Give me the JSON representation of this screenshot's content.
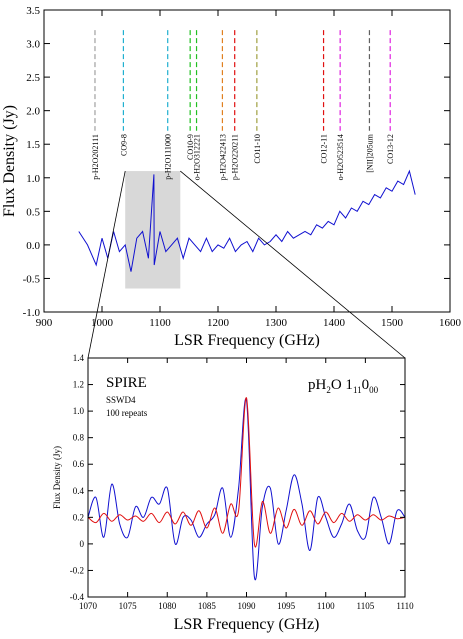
{
  "colors": {
    "spectrum": "#1010d0",
    "model": "#e01010",
    "zoom_box": "#d8d8d8"
  },
  "chart_data": [
    {
      "type": "line",
      "xlabel": "LSR Frequency (GHz)",
      "ylabel": "Flux Density (Jy)",
      "xlim": [
        900,
        1600
      ],
      "ylim": [
        -1.0,
        3.5
      ],
      "xticks": [
        "900",
        "1000",
        "1100",
        "1200",
        "1300",
        "1400",
        "1500",
        "1600"
      ],
      "yticks": [
        "-1.0",
        "-0.5",
        "0.0",
        "0.5",
        "1.0",
        "1.5",
        "2.0",
        "2.5",
        "3.0",
        "3.5"
      ],
      "zoom_region": {
        "x": [
          1040,
          1135
        ],
        "y": [
          -0.65,
          1.1
        ]
      },
      "lines": [
        {
          "label": "p-H2O202111",
          "freq": 987.9,
          "color": "#a0a0a0"
        },
        {
          "label": "CO9-8",
          "freq": 1036.9,
          "color": "#20b0d0"
        },
        {
          "label": "p-H2O111000",
          "freq": 1113.3,
          "color": "#20b0d0"
        },
        {
          "label": "CO10-9",
          "freq": 1152.0,
          "color": "#20c020"
        },
        {
          "label": "o-H2O312221",
          "freq": 1163.0,
          "color": "#20c020"
        },
        {
          "label": "p-H2O422413",
          "freq": 1207.6,
          "color": "#e08020"
        },
        {
          "label": "p-H2O220211",
          "freq": 1228.8,
          "color": "#e01010"
        },
        {
          "label": "CO11-10",
          "freq": 1267.0,
          "color": "#a0a040"
        },
        {
          "label": "CO12-11",
          "freq": 1382.0,
          "color": "#e01010"
        },
        {
          "label": "o-H2O523514",
          "freq": 1410.6,
          "color": "#e020e0"
        },
        {
          "label": "[NII]205um",
          "freq": 1461.1,
          "color": "#606060"
        },
        {
          "label": "CO13-12",
          "freq": 1496.9,
          "color": "#e020e0"
        }
      ],
      "series": [
        {
          "x": [
            960,
            975,
            990,
            1000,
            1010,
            1020,
            1030,
            1040,
            1050,
            1060,
            1070,
            1080,
            1089.5,
            1090,
            1100,
            1110,
            1120,
            1130,
            1140,
            1150,
            1160,
            1170,
            1180,
            1190,
            1200,
            1210,
            1220,
            1230,
            1240,
            1250,
            1260,
            1270,
            1280,
            1290,
            1300,
            1310,
            1320,
            1330,
            1340,
            1350,
            1360,
            1370,
            1380,
            1390,
            1400,
            1410,
            1420,
            1430,
            1440,
            1450,
            1460,
            1470,
            1480,
            1490,
            1500,
            1510,
            1520,
            1530,
            1540
          ],
          "y": [
            0.2,
            0.0,
            -0.3,
            0.1,
            -0.2,
            0.2,
            -0.1,
            0.0,
            -0.4,
            0.1,
            0.2,
            -0.2,
            1.05,
            -0.3,
            0.2,
            -0.1,
            0.0,
            0.1,
            -0.2,
            0.1,
            0.0,
            -0.1,
            0.1,
            -0.1,
            0.0,
            -0.05,
            0.1,
            -0.1,
            0.0,
            0.05,
            -0.1,
            0.1,
            0.0,
            0.05,
            0.15,
            0.05,
            0.2,
            0.1,
            0.15,
            0.2,
            0.15,
            0.3,
            0.25,
            0.35,
            0.3,
            0.5,
            0.4,
            0.55,
            0.5,
            0.65,
            0.6,
            0.75,
            0.7,
            0.85,
            0.8,
            0.95,
            0.9,
            1.1,
            0.75
          ]
        }
      ]
    },
    {
      "type": "line",
      "title": "SPIRE",
      "annotations": [
        "SSWD4",
        "100 repeats"
      ],
      "line_label_base": "pH",
      "line_label_sub1": "2",
      "line_label_mid": "O 1",
      "line_label_sub2": "11",
      "line_label_end": "0",
      "line_label_sub3": "00",
      "xlabel": "LSR Frequency (GHz)",
      "ylabel": "Flux Density (Jy)",
      "xlim": [
        1070,
        1110
      ],
      "ylim": [
        -0.4,
        1.4
      ],
      "xticks": [
        "1070",
        "1075",
        "1080",
        "1085",
        "1090",
        "1095",
        "1100",
        "1105",
        "1110"
      ],
      "yticks": [
        "-0.4",
        "-0.2",
        "0",
        "0.2",
        "0.4",
        "0.6",
        "0.8",
        "1.0",
        "1.2",
        "1.4"
      ],
      "series": [
        {
          "color": "#1010d0",
          "x": [
            1070,
            1071,
            1072,
            1073,
            1074,
            1075,
            1076,
            1077,
            1078,
            1079,
            1080,
            1081,
            1082,
            1083,
            1084,
            1085,
            1086,
            1087,
            1088,
            1089,
            1090,
            1091,
            1092,
            1093,
            1094,
            1095,
            1096,
            1097,
            1098,
            1099,
            1100,
            1101,
            1102,
            1103,
            1104,
            1105,
            1106,
            1107,
            1108,
            1109,
            1110
          ],
          "y": [
            0.2,
            0.35,
            0.05,
            0.45,
            0.15,
            0.05,
            0.28,
            0.2,
            0.35,
            0.3,
            0.42,
            0.0,
            0.2,
            0.18,
            0.05,
            0.15,
            0.22,
            0.42,
            0.05,
            0.42,
            1.08,
            -0.25,
            0.28,
            0.42,
            0.0,
            0.25,
            0.52,
            0.3,
            -0.05,
            0.35,
            0.2,
            0.05,
            0.15,
            0.3,
            0.1,
            0.05,
            0.35,
            0.2,
            0.0,
            0.25,
            0.2
          ]
        },
        {
          "color": "#e01010",
          "x": [
            1070,
            1071,
            1072,
            1073,
            1074,
            1075,
            1076,
            1077,
            1078,
            1079,
            1080,
            1081,
            1082,
            1083,
            1084,
            1085,
            1086,
            1087,
            1088,
            1089,
            1090,
            1091,
            1092,
            1093,
            1094,
            1095,
            1096,
            1097,
            1098,
            1099,
            1100,
            1101,
            1102,
            1103,
            1104,
            1105,
            1106,
            1107,
            1108,
            1109,
            1110
          ],
          "y": [
            0.2,
            0.16,
            0.23,
            0.17,
            0.22,
            0.18,
            0.21,
            0.17,
            0.23,
            0.16,
            0.24,
            0.15,
            0.24,
            0.14,
            0.25,
            0.12,
            0.27,
            0.08,
            0.3,
            0.25,
            1.1,
            0.0,
            0.32,
            0.08,
            0.27,
            0.12,
            0.26,
            0.14,
            0.25,
            0.15,
            0.24,
            0.16,
            0.23,
            0.17,
            0.22,
            0.18,
            0.22,
            0.18,
            0.21,
            0.19,
            0.2
          ]
        }
      ]
    }
  ]
}
